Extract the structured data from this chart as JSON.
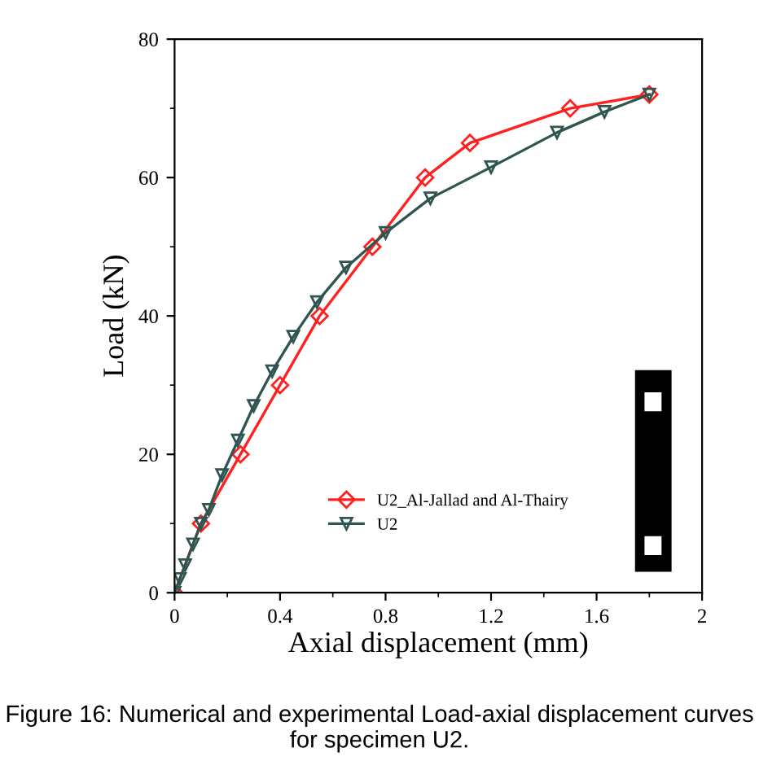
{
  "chart_data": {
    "type": "line",
    "xlabel": "Axial displacement (mm)",
    "ylabel": "Load (kN)",
    "xlim": [
      0,
      2
    ],
    "xticks": [
      0,
      0.4,
      0.8,
      1.2,
      1.6,
      2
    ],
    "ylim": [
      0,
      80
    ],
    "yticks": [
      0,
      20,
      40,
      60,
      80
    ],
    "grid": false,
    "legend": "bottom",
    "series": [
      {
        "name": "U2_Al-Jallad and Al-Thairy",
        "color": "#ff2020",
        "marker": "diamond",
        "x": [
          0,
          0.1,
          0.25,
          0.4,
          0.55,
          0.75,
          0.95,
          1.12,
          1.5,
          1.8
        ],
        "values": [
          0,
          10,
          20,
          30,
          40,
          50,
          60,
          65,
          70,
          72
        ]
      },
      {
        "name": "U2",
        "color": "#2f5550",
        "marker": "triangle",
        "x": [
          0,
          0.02,
          0.04,
          0.07,
          0.1,
          0.13,
          0.18,
          0.24,
          0.3,
          0.37,
          0.45,
          0.54,
          0.65,
          0.8,
          0.97,
          1.2,
          1.45,
          1.63,
          1.8
        ],
        "values": [
          0,
          2,
          4,
          7,
          10,
          12,
          17,
          22,
          27,
          32,
          37,
          42,
          47,
          52,
          57,
          61.5,
          66.5,
          69.5,
          72
        ]
      }
    ],
    "annotations": [
      "Figure 16: Numerical and experimental Load-axial displacement curves for specimen U2."
    ]
  }
}
